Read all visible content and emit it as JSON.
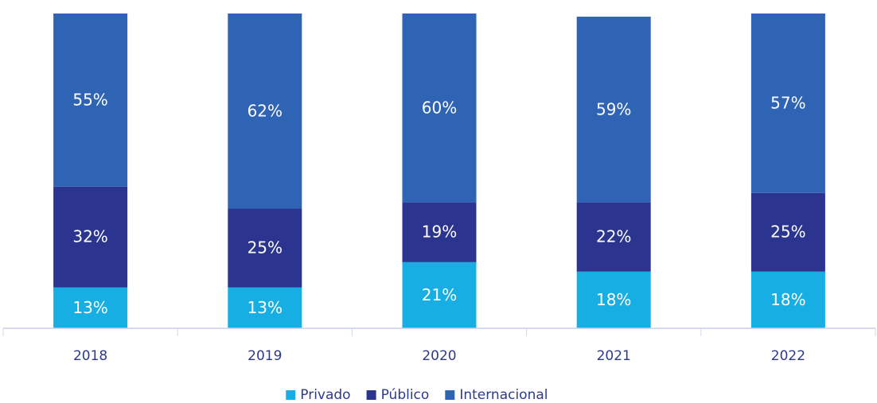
{
  "chart_data": {
    "type": "stacked_bar",
    "categories": [
      "2018",
      "2019",
      "2020",
      "2021",
      "2022"
    ],
    "series": [
      {
        "name": "Privado",
        "color": "#17aee3",
        "values": [
          13,
          13,
          21,
          18,
          18
        ],
        "value_labels": [
          "13%",
          "13%",
          "21%",
          "18%",
          "18%"
        ]
      },
      {
        "name": "Público",
        "color": "#2b3590",
        "values": [
          32,
          25,
          19,
          22,
          25
        ],
        "value_labels": [
          "32%",
          "25%",
          "19%",
          "22%",
          "25%"
        ]
      },
      {
        "name": "Internacional",
        "color": "#2f63b4",
        "values": [
          55,
          62,
          60,
          59,
          57
        ],
        "value_labels": [
          "55%",
          "62%",
          "60%",
          "59%",
          "57%"
        ]
      }
    ],
    "ylim": [
      0,
      100
    ],
    "legend": "bottom"
  }
}
